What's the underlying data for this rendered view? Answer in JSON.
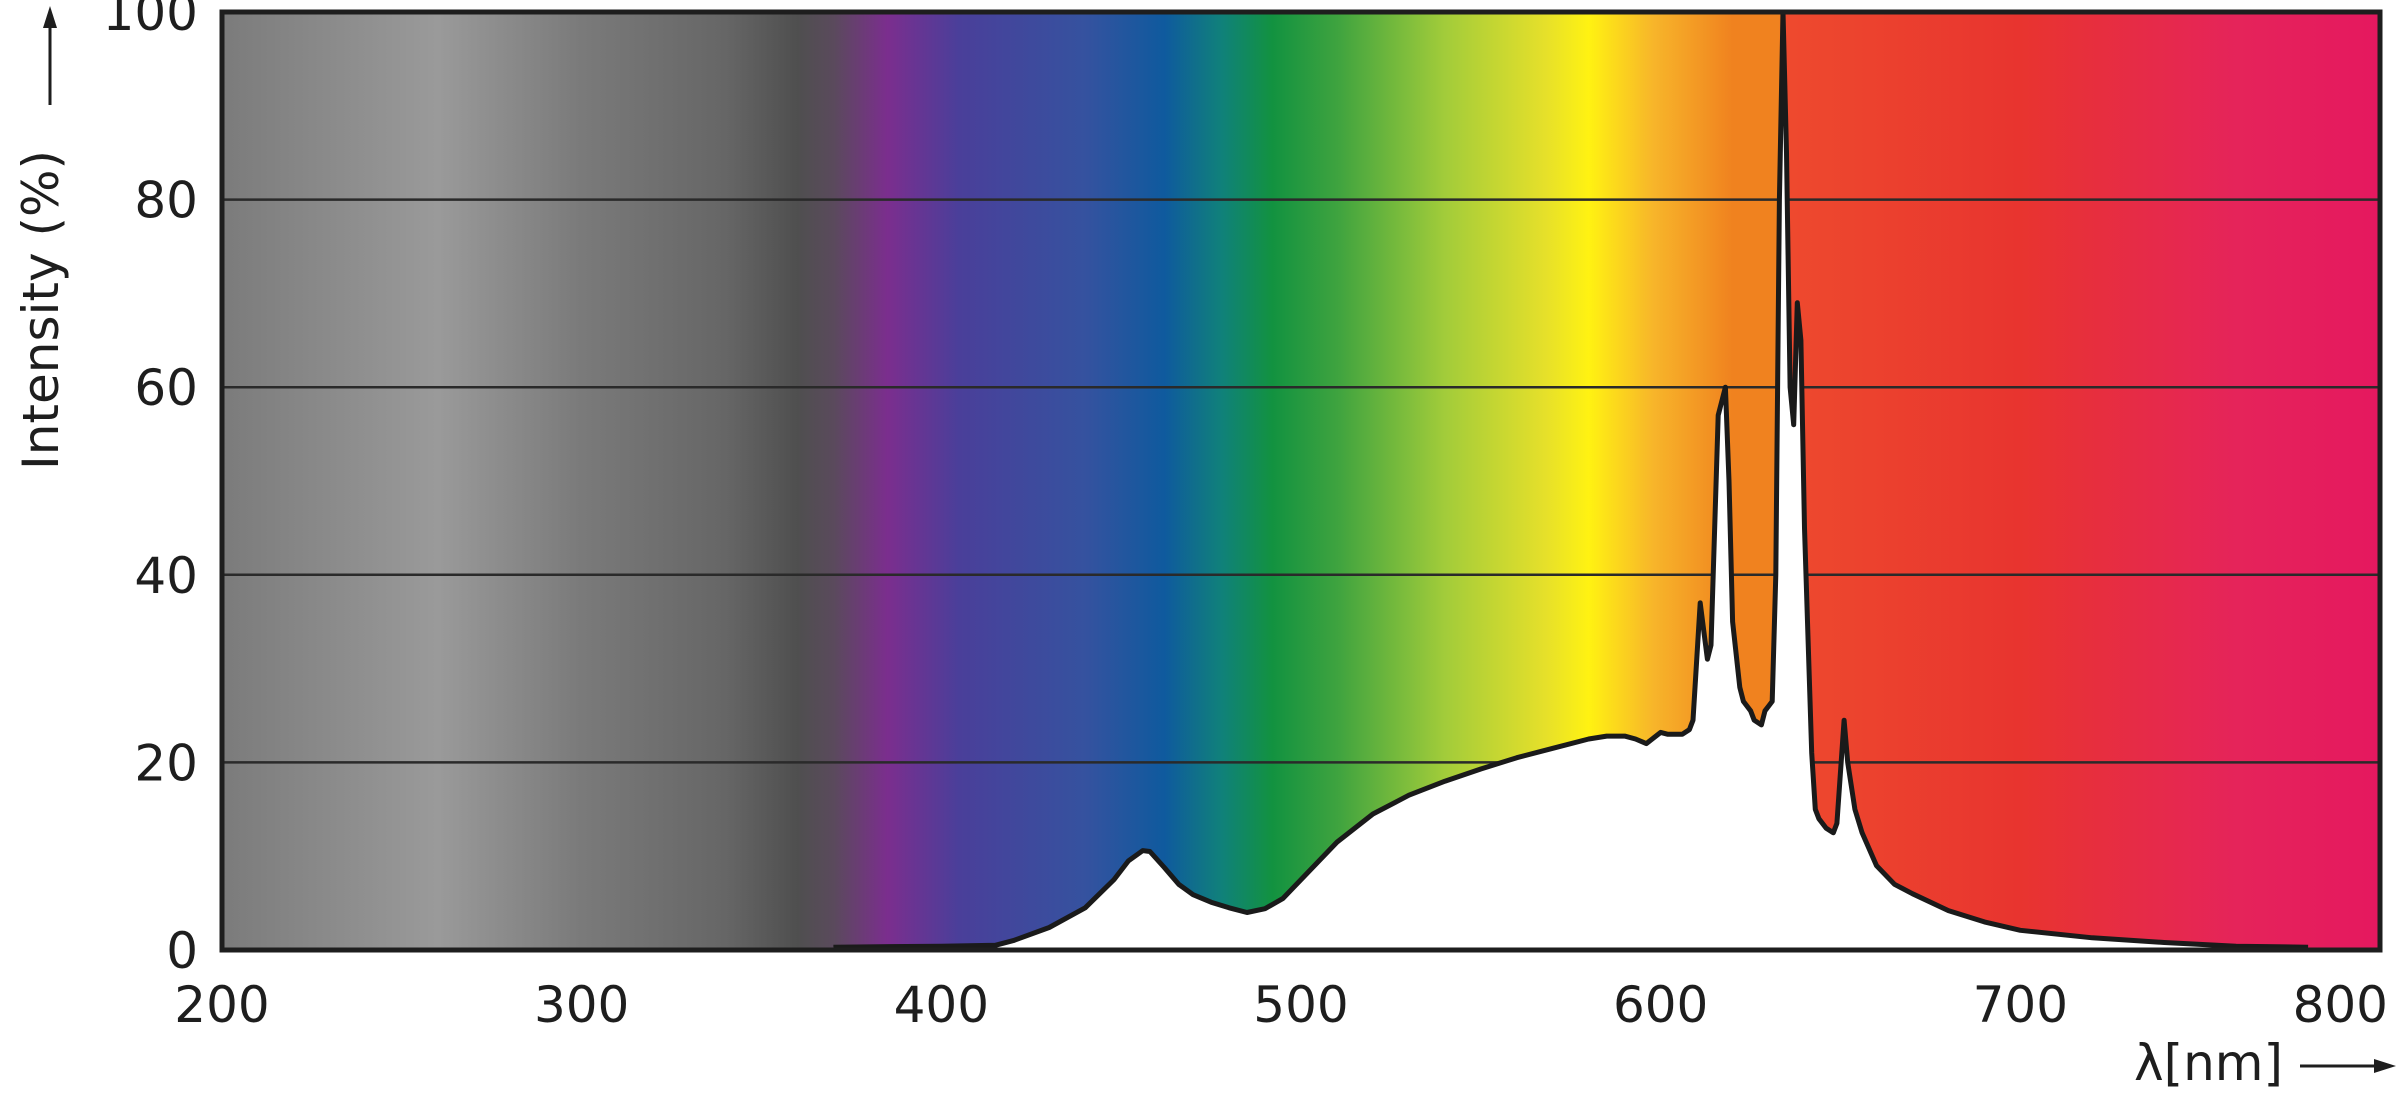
{
  "chart_data": {
    "type": "area",
    "title": "",
    "xlabel": "λ[nm]",
    "ylabel": "Intensity (%)",
    "xlim": [
      200,
      800
    ],
    "ylim": [
      0,
      100
    ],
    "x_ticks": [
      200,
      300,
      400,
      500,
      600,
      700,
      800
    ],
    "y_ticks": [
      0,
      20,
      40,
      60,
      80,
      100
    ],
    "grid": "horizontal",
    "background": "visible spectrum gradient",
    "spectrum_colors": [
      {
        "nm": 200,
        "color": "#7b7b7b"
      },
      {
        "nm": 260,
        "color": "#9a9a9a"
      },
      {
        "nm": 300,
        "color": "#7a7a7a"
      },
      {
        "nm": 340,
        "color": "#666666"
      },
      {
        "nm": 360,
        "color": "#4f4f4f"
      },
      {
        "nm": 370,
        "color": "#5a4a5c"
      },
      {
        "nm": 385,
        "color": "#7b2e8e"
      },
      {
        "nm": 405,
        "color": "#4a3f9a"
      },
      {
        "nm": 440,
        "color": "#35529f"
      },
      {
        "nm": 462,
        "color": "#0f5a9e"
      },
      {
        "nm": 478,
        "color": "#10817a"
      },
      {
        "nm": 492,
        "color": "#129240"
      },
      {
        "nm": 510,
        "color": "#3ea33f"
      },
      {
        "nm": 540,
        "color": "#a2cc3a"
      },
      {
        "nm": 568,
        "color": "#e6e02a"
      },
      {
        "nm": 580,
        "color": "#fff212"
      },
      {
        "nm": 598,
        "color": "#f7b52a"
      },
      {
        "nm": 620,
        "color": "#f0821f"
      },
      {
        "nm": 633,
        "color": "#f0821f"
      },
      {
        "nm": 634,
        "color": "#ee4a2e"
      },
      {
        "nm": 700,
        "color": "#e8342f"
      },
      {
        "nm": 760,
        "color": "#e5245a"
      },
      {
        "nm": 800,
        "color": "#e5185f"
      }
    ],
    "series": [
      {
        "x": [
          370,
          400,
          415,
          420,
          430,
          440,
          448,
          452,
          456,
          458,
          462,
          466,
          470,
          475,
          480,
          485,
          490,
          495,
          500,
          510,
          520,
          530,
          540,
          550,
          560,
          570,
          580,
          585,
          590,
          593,
          596,
          600,
          602,
          606,
          608,
          609,
          611,
          612,
          613,
          614,
          616,
          618,
          619,
          620,
          622,
          623,
          625,
          626,
          628,
          629,
          630,
          631,
          632,
          633,
          634,
          635,
          636,
          637,
          638,
          639,
          640,
          641,
          642,
          643,
          644,
          646,
          648,
          649,
          650,
          651,
          652,
          654,
          656,
          660,
          665,
          670,
          680,
          690,
          700,
          720,
          740,
          760,
          780
        ],
        "y": [
          0.3,
          0.4,
          0.5,
          1.0,
          2.4,
          4.5,
          7.5,
          9.5,
          10.6,
          10.5,
          8.8,
          7.0,
          5.9,
          5.1,
          4.5,
          4.0,
          4.4,
          5.5,
          7.5,
          11.5,
          14.5,
          16.5,
          18.0,
          19.3,
          20.5,
          21.5,
          22.5,
          22.8,
          22.8,
          22.5,
          22.0,
          23.2,
          23.0,
          23.0,
          23.5,
          24.5,
          37.0,
          34.0,
          31.0,
          32.5,
          57.0,
          60.0,
          50.0,
          35.0,
          28.0,
          26.5,
          25.5,
          24.5,
          24.0,
          25.5,
          26.0,
          26.5,
          40.0,
          80.0,
          100.0,
          85.0,
          60.0,
          56.0,
          69.0,
          65.0,
          45.0,
          33.0,
          21.0,
          15.0,
          14.0,
          13.0,
          12.5,
          13.5,
          19.0,
          24.5,
          20.0,
          15.0,
          12.5,
          9.0,
          7.0,
          6.0,
          4.2,
          3.0,
          2.1,
          1.3,
          0.8,
          0.4,
          0.3
        ]
      }
    ]
  }
}
